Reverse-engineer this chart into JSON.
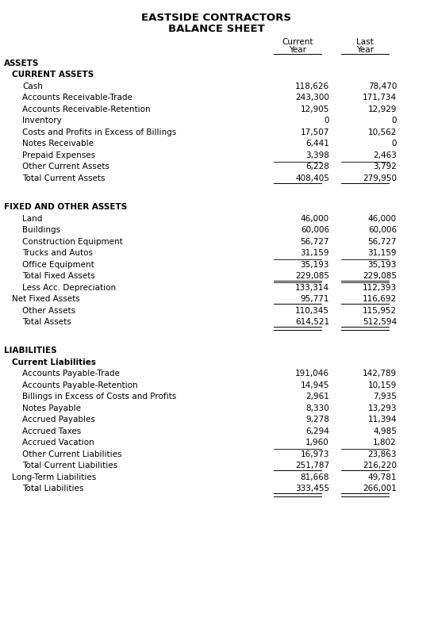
{
  "title1": "EASTSIDE CONTRACTORS",
  "title2": "BALANCE SHEET",
  "rows": [
    {
      "label": "ASSETS",
      "indent": 0,
      "cur": "",
      "last": "",
      "style": "section"
    },
    {
      "label": "CURRENT ASSETS",
      "indent": 1,
      "cur": "",
      "last": "",
      "style": "subsection"
    },
    {
      "label": "Cash",
      "indent": 2,
      "cur": "118,626",
      "last": "78,470",
      "style": "normal"
    },
    {
      "label": "Accounts Receivable-Trade",
      "indent": 2,
      "cur": "243,300",
      "last": "171,734",
      "style": "normal"
    },
    {
      "label": "Accounts Receivable-Retention",
      "indent": 2,
      "cur": "12,905",
      "last": "12,929",
      "style": "normal"
    },
    {
      "label": "Inventory",
      "indent": 2,
      "cur": "0",
      "last": "0",
      "style": "normal"
    },
    {
      "label": "Costs and Profits in Excess of Billings",
      "indent": 2,
      "cur": "17,507",
      "last": "10,562",
      "style": "normal"
    },
    {
      "label": "Notes Receivable",
      "indent": 2,
      "cur": "6,441",
      "last": "0",
      "style": "normal"
    },
    {
      "label": "Prepaid Expenses",
      "indent": 2,
      "cur": "3,398",
      "last": "2,463",
      "style": "normal"
    },
    {
      "label": "Other Current Assets",
      "indent": 2,
      "cur": "6,228",
      "last": "3,792",
      "style": "line_above"
    },
    {
      "label": "Total Current Assets",
      "indent": 2,
      "cur": "408,405",
      "last": "279,950",
      "style": "total"
    },
    {
      "label": "",
      "indent": 0,
      "cur": "",
      "last": "",
      "style": "spacer"
    },
    {
      "label": "FIXED AND OTHER ASSETS",
      "indent": 0,
      "cur": "",
      "last": "",
      "style": "section"
    },
    {
      "label": "Land",
      "indent": 2,
      "cur": "46,000",
      "last": "46,000",
      "style": "normal"
    },
    {
      "label": "Buildings",
      "indent": 2,
      "cur": "60,006",
      "last": "60,006",
      "style": "normal"
    },
    {
      "label": "Construction Equipment",
      "indent": 2,
      "cur": "56,727",
      "last": "56,727",
      "style": "normal"
    },
    {
      "label": "Trucks and Autos",
      "indent": 2,
      "cur": "31,159",
      "last": "31,159",
      "style": "normal"
    },
    {
      "label": "Office Equipment",
      "indent": 2,
      "cur": "35,193",
      "last": "35,193",
      "style": "line_above"
    },
    {
      "label": "Total Fixed Assets",
      "indent": 2,
      "cur": "229,085",
      "last": "229,085",
      "style": "total"
    },
    {
      "label": "Less Acc. Depreciation",
      "indent": 2,
      "cur": "133,314",
      "last": "112,393",
      "style": "line_above"
    },
    {
      "label": "Net Fixed Assets",
      "indent": 1,
      "cur": "95,771",
      "last": "116,692",
      "style": "total"
    },
    {
      "label": "Other Assets",
      "indent": 2,
      "cur": "110,345",
      "last": "115,952",
      "style": "normal"
    },
    {
      "label": "Total Assets",
      "indent": 2,
      "cur": "614,521",
      "last": "512,594",
      "style": "double_total"
    },
    {
      "label": "",
      "indent": 0,
      "cur": "",
      "last": "",
      "style": "spacer"
    },
    {
      "label": "LIABILITIES",
      "indent": 0,
      "cur": "",
      "last": "",
      "style": "section"
    },
    {
      "label": "Current Liabilities",
      "indent": 1,
      "cur": "",
      "last": "",
      "style": "subsection"
    },
    {
      "label": "Accounts Payable-Trade",
      "indent": 2,
      "cur": "191,046",
      "last": "142,789",
      "style": "normal"
    },
    {
      "label": "Accounts Payable-Retention",
      "indent": 2,
      "cur": "14,945",
      "last": "10,159",
      "style": "normal"
    },
    {
      "label": "Billings in Excess of Costs and Profits",
      "indent": 2,
      "cur": "2,961",
      "last": "7,935",
      "style": "normal"
    },
    {
      "label": "Notes Payable",
      "indent": 2,
      "cur": "8,330",
      "last": "13,293",
      "style": "normal"
    },
    {
      "label": "Accrued Payables",
      "indent": 2,
      "cur": "9,278",
      "last": "11,394",
      "style": "normal"
    },
    {
      "label": "Accrued Taxes",
      "indent": 2,
      "cur": "6,294",
      "last": "4,985",
      "style": "normal"
    },
    {
      "label": "Accrued Vacation",
      "indent": 2,
      "cur": "1,960",
      "last": "1,802",
      "style": "normal"
    },
    {
      "label": "Other Current Liabilities",
      "indent": 2,
      "cur": "16,973",
      "last": "23,863",
      "style": "line_above"
    },
    {
      "label": "Total Current Liabilities",
      "indent": 2,
      "cur": "251,787",
      "last": "216,220",
      "style": "total"
    },
    {
      "label": "Long-Term Liabilities",
      "indent": 1,
      "cur": "81,668",
      "last": "49,781",
      "style": "normal"
    },
    {
      "label": "Total Liabilities",
      "indent": 2,
      "cur": "333,455",
      "last": "266,001",
      "style": "double_total"
    }
  ],
  "bg_color": "#ffffff",
  "text_color": "#000000",
  "font_size": 7.5,
  "title_font_size": 9.5
}
